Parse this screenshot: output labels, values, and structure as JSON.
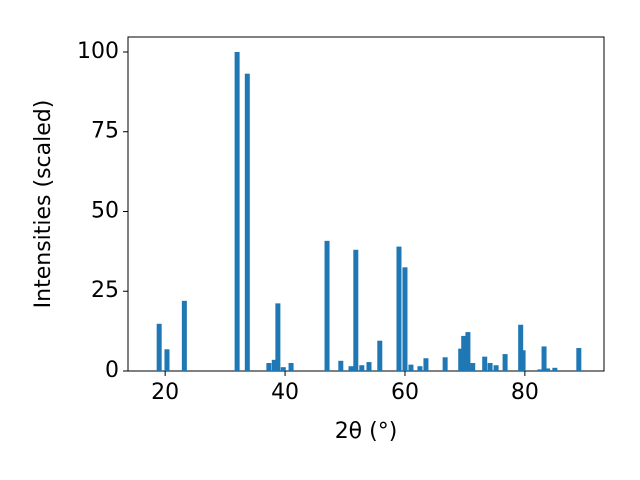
{
  "chart_data": {
    "type": "bar",
    "xlabel": "2θ (°)",
    "ylabel": "Intensities (scaled)",
    "x": [
      19.0,
      20.3,
      23.2,
      32.0,
      33.7,
      37.3,
      38.2,
      38.8,
      39.7,
      41.0,
      47.0,
      49.3,
      51.0,
      51.8,
      52.8,
      54.0,
      55.8,
      59.0,
      60.0,
      61.0,
      62.5,
      63.5,
      66.7,
      69.3,
      69.8,
      70.5,
      71.3,
      73.3,
      74.2,
      75.2,
      76.7,
      79.3,
      79.7,
      82.5,
      83.2,
      83.8,
      85.0,
      89.0
    ],
    "values": [
      14.8,
      6.8,
      22,
      100,
      93.2,
      2.5,
      3.5,
      21.2,
      1.2,
      2.5,
      40.8,
      3.2,
      1.5,
      38,
      1.8,
      2.8,
      9.5,
      39,
      32.5,
      2.0,
      1.5,
      4,
      4.3,
      7,
      11,
      12.2,
      2.5,
      4.5,
      2.5,
      1.8,
      5.3,
      14.5,
      6.5,
      0.5,
      7.7,
      0.8,
      1,
      7.2
    ],
    "color": "#1f77b4",
    "xlim": [
      13.8,
      93.2
    ],
    "ylim": [
      0,
      104.7
    ],
    "xticks": [
      20,
      40,
      60,
      80
    ],
    "yticks": [
      0,
      25,
      50,
      75,
      100
    ],
    "grid": false
  }
}
